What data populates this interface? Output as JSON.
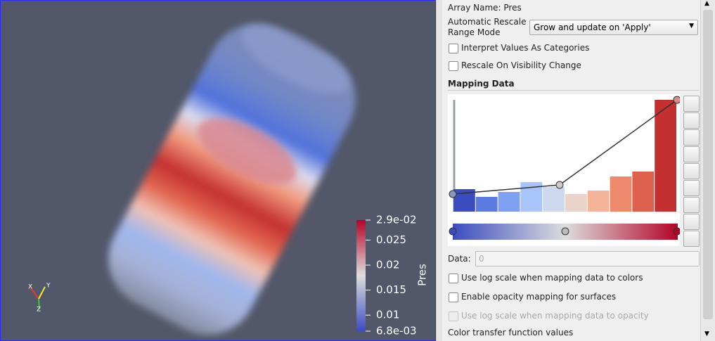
{
  "view": {
    "legend": {
      "title": "Pres",
      "range": [
        0.0068,
        0.029
      ],
      "ticks": [
        {
          "value": 0.029,
          "label": "2.9e-02"
        },
        0.025,
        0.02,
        0.015,
        0.01,
        {
          "value": 0.0068,
          "label": "6.8e-03"
        }
      ]
    },
    "axes": {
      "x": "X",
      "y": "Y",
      "z": "Z"
    }
  },
  "panel": {
    "array_name": "Array Name: Pres",
    "rescale_label": "Automatic Rescale Range Mode",
    "rescale_value": "Grow and update on 'Apply'",
    "options": [
      "Interpret Values As Categories",
      "Rescale On Visibility Change"
    ],
    "mapping_title": "Mapping Data",
    "histogram": {
      "counts": [
        32,
        21,
        28,
        42,
        35,
        25,
        30,
        50,
        57,
        159
      ],
      "colors": [
        "#3b4cc0",
        "#5b7be0",
        "#7ea0f0",
        "#a8c4f8",
        "#ccd8ee",
        "#ead3c8",
        "#f4b49a",
        "#ee8a6c",
        "#dd604c",
        "#c43030"
      ]
    },
    "data_label": "Data:",
    "data_placeholder": "0",
    "options2": [
      "Use log scale when mapping data to colors",
      "Enable opacity mapping for surfaces"
    ],
    "disabled_option": "Use log scale when mapping data to opacity",
    "footer": "Color transfer function values"
  }
}
